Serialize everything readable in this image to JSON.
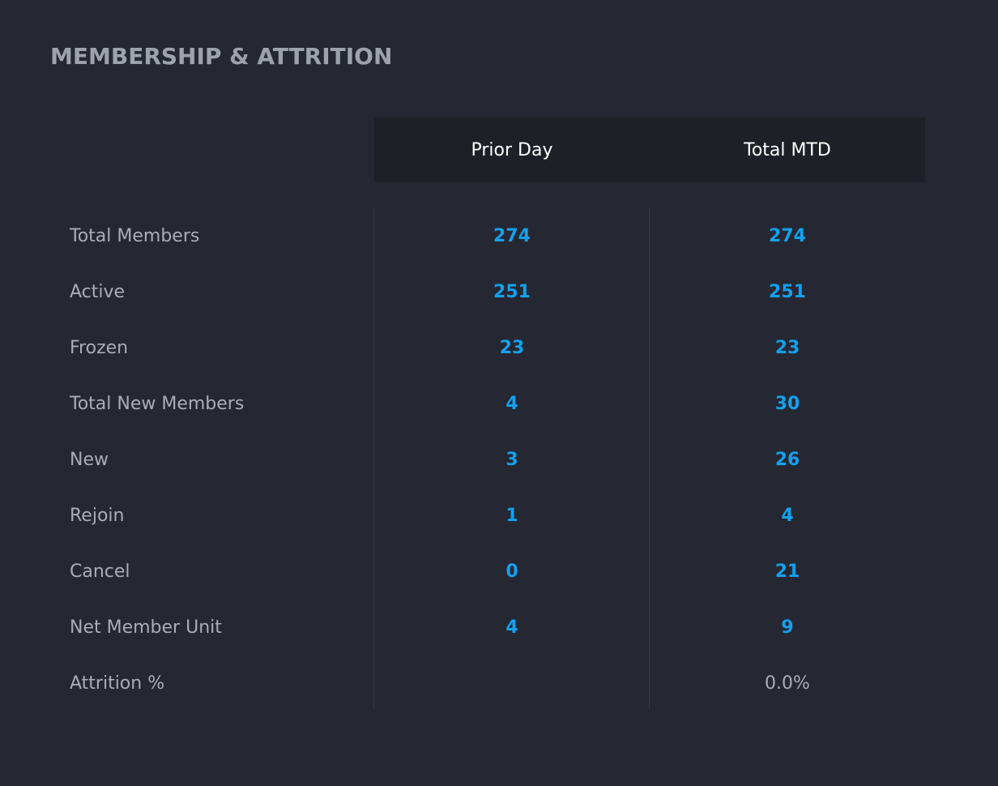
{
  "title": "MEMBERSHIP & ATTRITION",
  "columns": {
    "prior_day": "Prior Day",
    "total_mtd": "Total MTD"
  },
  "rows": [
    {
      "label": "Total Members",
      "prior_day": "274",
      "total_mtd": "274"
    },
    {
      "label": "Active",
      "prior_day": "251",
      "total_mtd": "251"
    },
    {
      "label": "Frozen",
      "prior_day": "23",
      "total_mtd": "23"
    },
    {
      "label": "Total New Members",
      "prior_day": "4",
      "total_mtd": "30"
    },
    {
      "label": "New",
      "prior_day": "3",
      "total_mtd": "26"
    },
    {
      "label": "Rejoin",
      "prior_day": "1",
      "total_mtd": "4"
    },
    {
      "label": "Cancel",
      "prior_day": "0",
      "total_mtd": "21"
    },
    {
      "label": "Net Member Unit",
      "prior_day": "4",
      "total_mtd": "9"
    },
    {
      "label": "Attrition %",
      "prior_day": "",
      "total_mtd": "0.0%"
    }
  ],
  "colors": {
    "background": "#252832",
    "header_background": "#1e2028",
    "value_accent": "#14a0ee",
    "label_text": "#a9adb6",
    "title_text": "#9ea2ac"
  }
}
